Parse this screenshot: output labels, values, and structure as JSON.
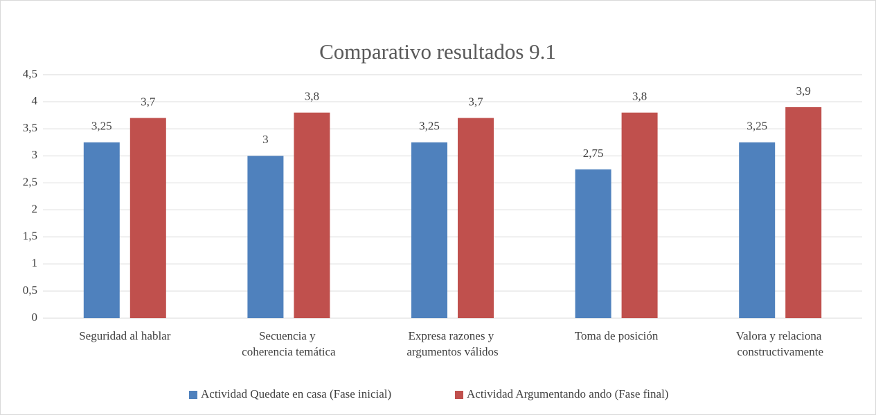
{
  "chart_data": {
    "type": "bar",
    "title": "Comparativo resultados 9.1",
    "categories": [
      "Seguridad al hablar",
      "Secuencia y coherencia temática",
      "Expresa razones y argumentos válidos",
      "Toma de posición",
      "Valora y relaciona constructivamente"
    ],
    "series": [
      {
        "name": "Actividad Quedate en casa (Fase inicial)",
        "color": "#4f81bd",
        "values": [
          3.25,
          3,
          3.25,
          2.75,
          3.25
        ],
        "value_labels": [
          "3,25",
          "3",
          "3,25",
          "2,75",
          "3,25"
        ]
      },
      {
        "name": "Actividad Argumentando ando (Fase final)",
        "color": "#c0504d",
        "values": [
          3.7,
          3.8,
          3.7,
          3.8,
          3.9
        ],
        "value_labels": [
          "3,7",
          "3,8",
          "3,7",
          "3,8",
          "3,9"
        ]
      }
    ],
    "ylim": [
      0,
      4.5
    ],
    "yticks": [
      0,
      {
        "value": 0.5,
        "label": "0,5"
      },
      1,
      {
        "value": 1.5,
        "label": "1,5"
      },
      2,
      {
        "value": 2.5,
        "label": "2,5"
      },
      3,
      {
        "value": 3.5,
        "label": "3,5"
      },
      4,
      {
        "value": 4.5,
        "label": "4,5"
      }
    ],
    "grid": true,
    "legend": "bottom"
  }
}
